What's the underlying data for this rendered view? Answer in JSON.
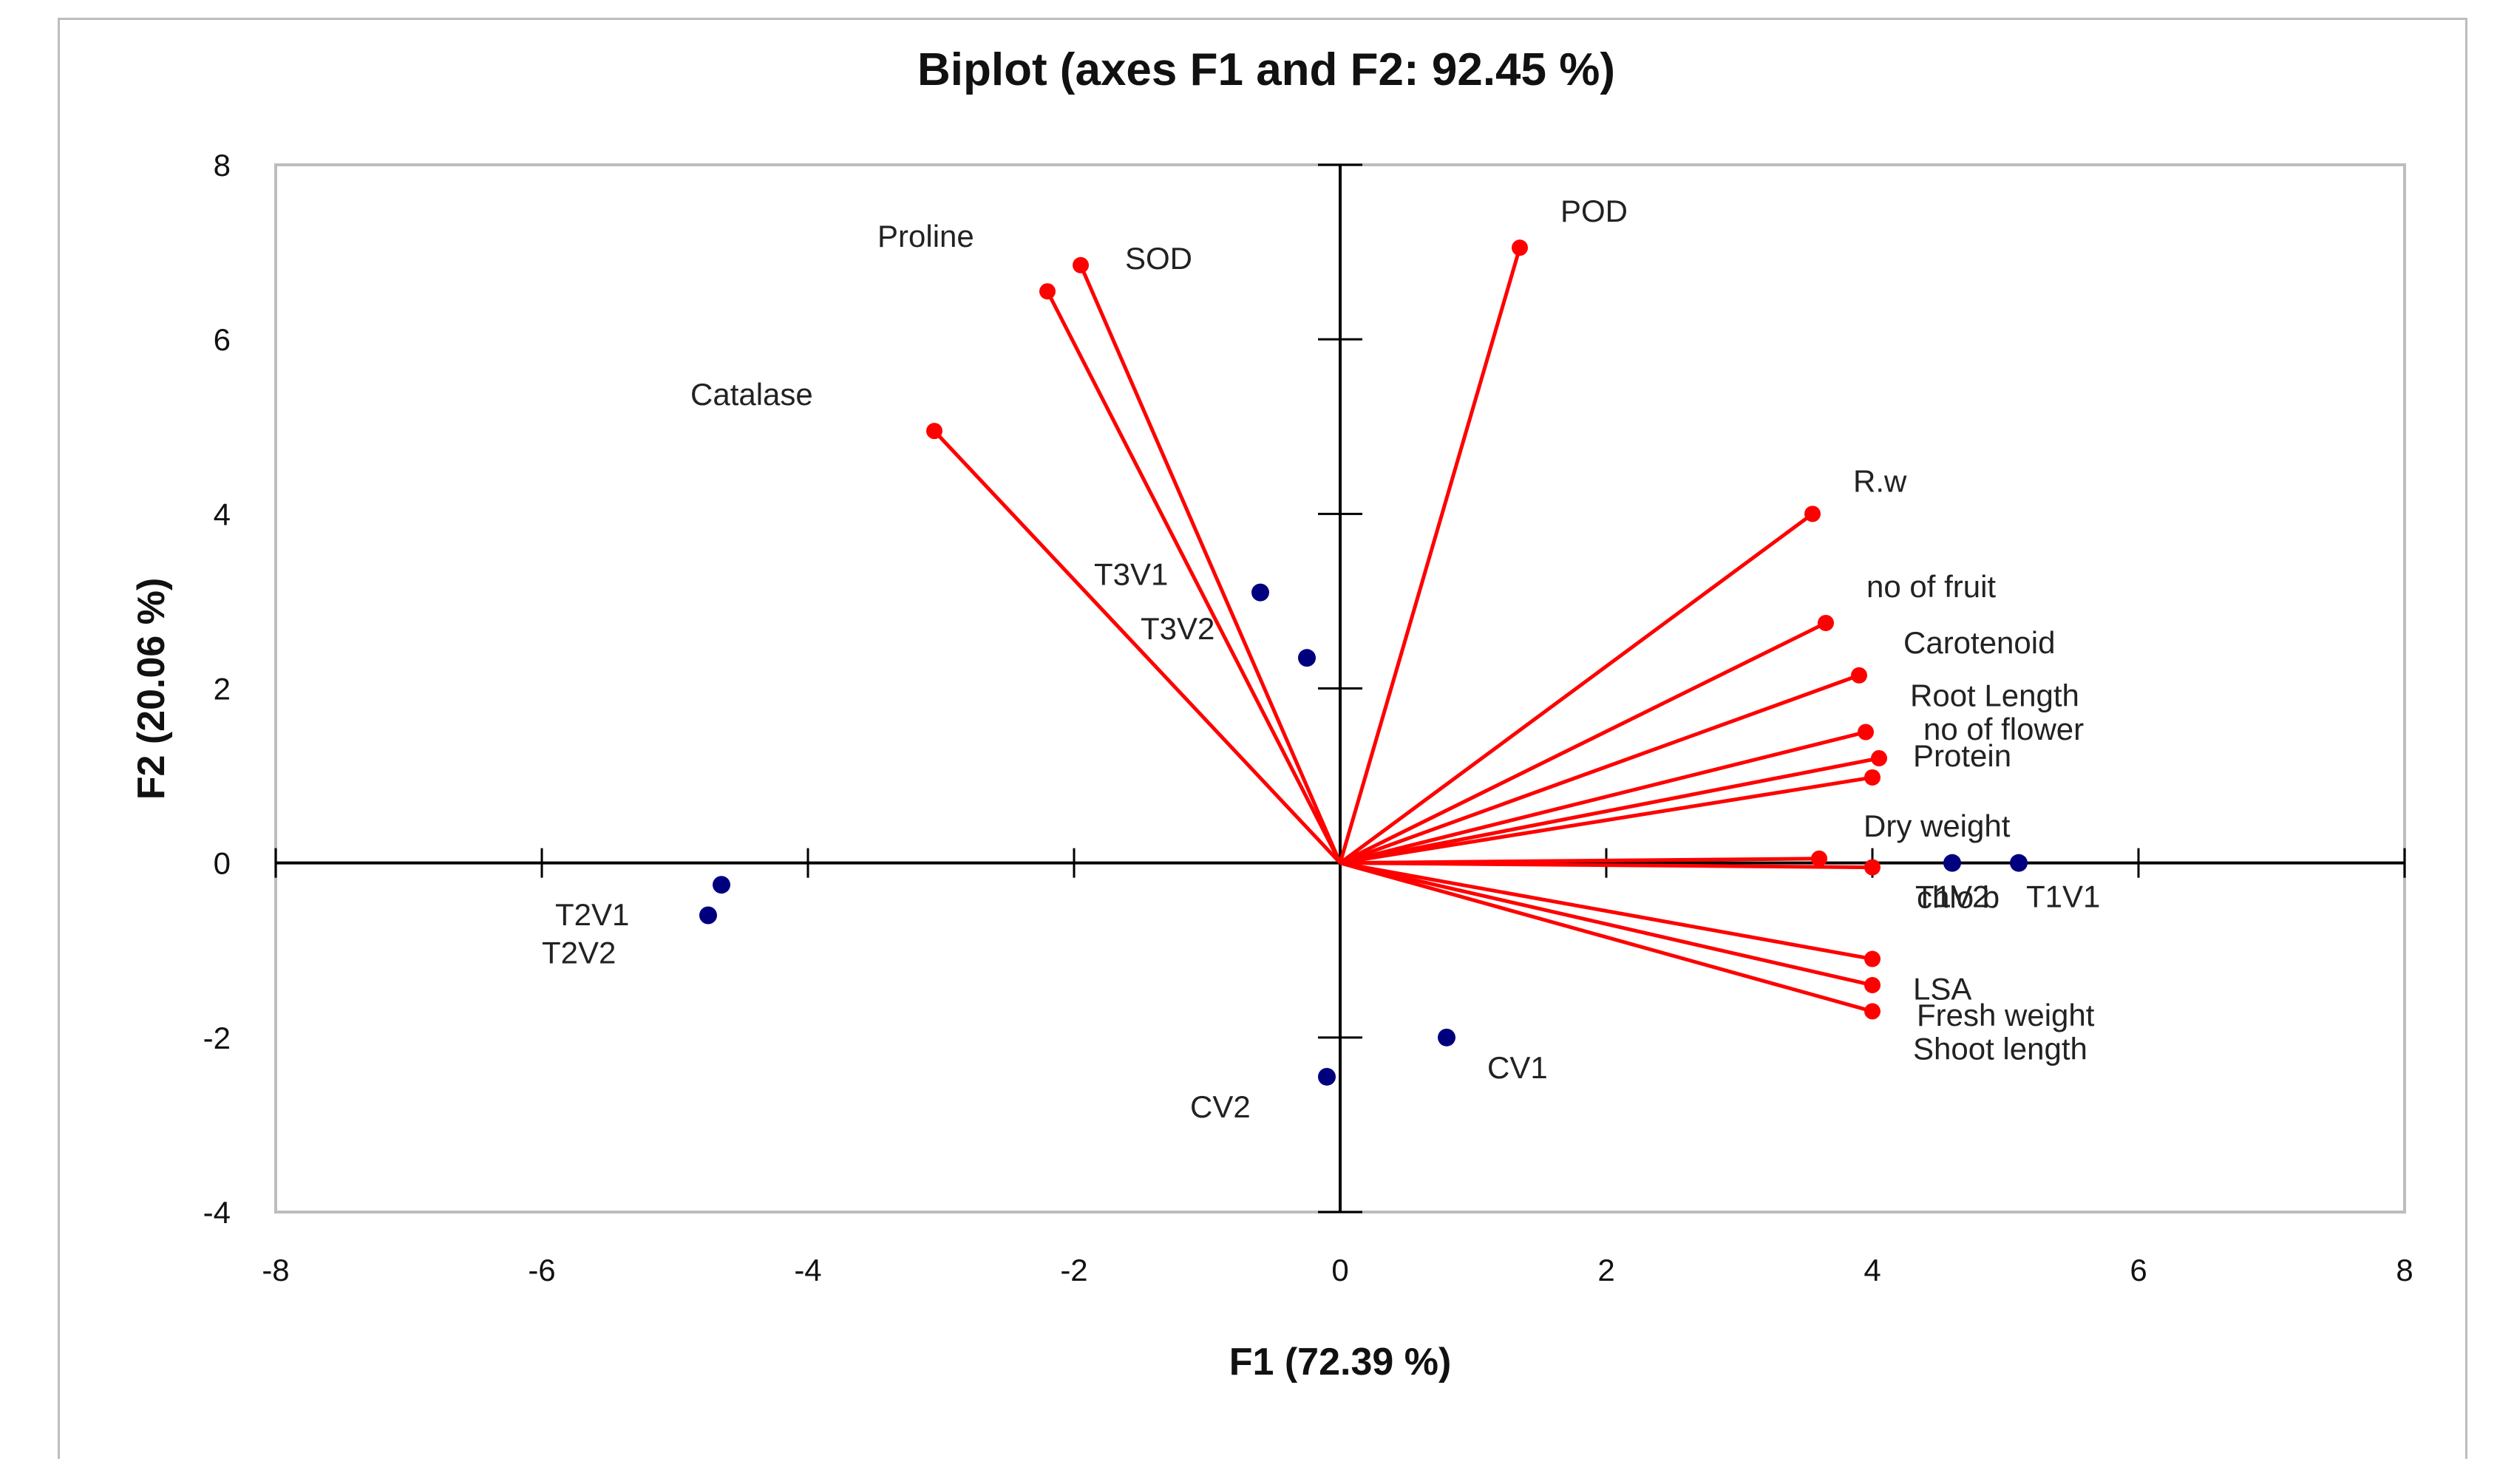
{
  "chart_data": {
    "type": "scatter",
    "title": "Biplot (axes F1 and F2: 92.45 %)",
    "xlabel": "F1 (72.39 %)",
    "ylabel": "F2 (20.06 %)",
    "xlim": [
      -8,
      8
    ],
    "ylim": [
      -4,
      8
    ],
    "xticks": [
      -8,
      -6,
      -4,
      -2,
      0,
      2,
      4,
      6,
      8
    ],
    "yticks": [
      -4,
      -2,
      0,
      2,
      4,
      6,
      8
    ],
    "colors": {
      "variables": "#ff0000",
      "observations": "#00007f",
      "axes": "#000000",
      "plot_border": "#bdbdbd"
    },
    "variables": [
      {
        "name": "Proline",
        "x": -2.2,
        "y": 6.55
      },
      {
        "name": "SOD",
        "x": -1.95,
        "y": 6.85
      },
      {
        "name": "Catalase",
        "x": -3.05,
        "y": 4.95
      },
      {
        "name": "POD",
        "x": 1.35,
        "y": 7.05
      },
      {
        "name": "R.w",
        "x": 3.55,
        "y": 4.0
      },
      {
        "name": "no  of fruit",
        "x": 3.65,
        "y": 2.75
      },
      {
        "name": "Carotenoid",
        "x": 3.9,
        "y": 2.15
      },
      {
        "name": "Root Length",
        "x": 3.95,
        "y": 1.5
      },
      {
        "name": "no of flower",
        "x": 4.05,
        "y": 1.2
      },
      {
        "name": "Protein",
        "x": 4.0,
        "y": 0.98
      },
      {
        "name": "Dry weight",
        "x": 3.6,
        "y": 0.05
      },
      {
        "name": "chlo b",
        "x": 4.0,
        "y": -0.05
      },
      {
        "name": "LSA",
        "x": 4.0,
        "y": -1.1
      },
      {
        "name": "Fresh weight",
        "x": 4.0,
        "y": -1.4
      },
      {
        "name": "Shoot length",
        "x": 4.0,
        "y": -1.7
      }
    ],
    "observations": [
      {
        "name": "T3V1",
        "x": -0.6,
        "y": 3.1
      },
      {
        "name": "T3V2",
        "x": -0.25,
        "y": 2.35
      },
      {
        "name": "T2V1",
        "x": -4.65,
        "y": -0.25
      },
      {
        "name": "T2V2",
        "x": -4.75,
        "y": -0.6
      },
      {
        "name": "CV1",
        "x": 0.8,
        "y": -2.0
      },
      {
        "name": "CV2",
        "x": -0.1,
        "y": -2.45
      },
      {
        "name": "T1V2",
        "x": 4.6,
        "y": 0.0
      },
      {
        "name": "T1V1",
        "x": 5.1,
        "y": 0.0
      }
    ]
  }
}
